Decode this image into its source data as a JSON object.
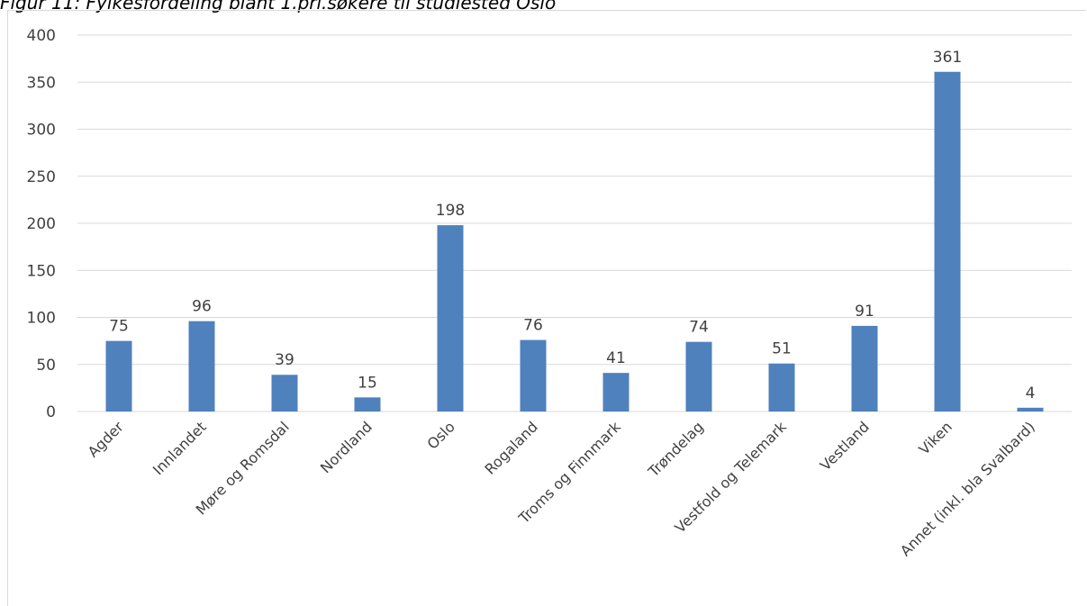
{
  "figure_caption": "Figur 11: Fylkesfordeling blant 1.pri.søkere til studiested Oslo",
  "colors": {
    "bar": "#4f81bd",
    "gridline": "#d9d9d9",
    "text": "#404040"
  },
  "chart_data": {
    "type": "bar",
    "title": "",
    "xlabel": "",
    "ylabel": "",
    "categories": [
      "Agder",
      "Innlandet",
      "Møre og Romsdal",
      "Nordland",
      "Oslo",
      "Rogaland",
      "Troms og Finnmark",
      "Trøndelag",
      "Vestfold og Telemark",
      "Vestland",
      "Viken",
      "Annet (inkl. bla Svalbard)"
    ],
    "values": [
      75,
      96,
      39,
      15,
      198,
      76,
      41,
      74,
      51,
      91,
      361,
      4
    ],
    "ylim": [
      0,
      400
    ],
    "yticks": [
      0,
      50,
      100,
      150,
      200,
      250,
      300,
      350,
      400
    ],
    "grid": true,
    "legend": "none",
    "data_labels": true
  }
}
